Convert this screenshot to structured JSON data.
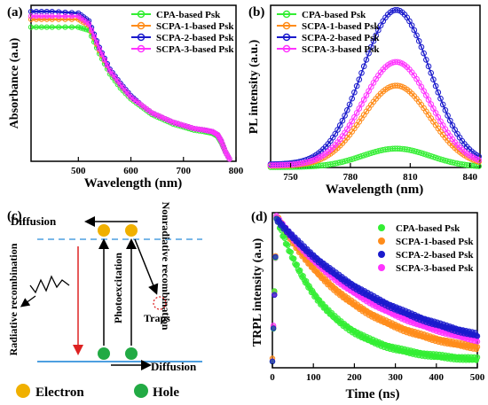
{
  "colors": {
    "cpa": "#33ee33",
    "scpa1": "#ff8c1a",
    "scpa2": "#1a1acc",
    "scpa3": "#ff33ff",
    "axis": "#000000",
    "dash": "#4d9fe0",
    "electron": "#f0b000",
    "hole": "#22aa44",
    "recomb_arrow": "#dd2222",
    "trap": "#dd2222"
  },
  "chart_data": [
    {
      "type": "line",
      "panel_label": "(a)",
      "xlabel": "Wavelength (nm)",
      "ylabel": "Absorbance (a.u)",
      "xlim": [
        410,
        800
      ],
      "ylim": [
        0,
        1.0
      ],
      "xticks": [
        500,
        600,
        700,
        800
      ],
      "legend_position": "top-right",
      "series": [
        {
          "name": "CPA-based Psk",
          "color_key": "cpa",
          "x": [
            410,
            450,
            500,
            520,
            540,
            560,
            580,
            600,
            620,
            640,
            660,
            680,
            700,
            720,
            740,
            755,
            765,
            772,
            780,
            790
          ],
          "y": [
            0.86,
            0.86,
            0.86,
            0.84,
            0.69,
            0.56,
            0.47,
            0.4,
            0.35,
            0.3,
            0.27,
            0.24,
            0.22,
            0.2,
            0.19,
            0.18,
            0.16,
            0.12,
            0.06,
            0.0
          ]
        },
        {
          "name": "SCPA-1-based Psk",
          "color_key": "scpa1",
          "x": [
            410,
            450,
            500,
            520,
            540,
            560,
            580,
            600,
            620,
            640,
            660,
            680,
            700,
            720,
            740,
            755,
            765,
            772,
            780,
            790
          ],
          "y": [
            0.91,
            0.91,
            0.91,
            0.87,
            0.71,
            0.58,
            0.49,
            0.41,
            0.36,
            0.31,
            0.28,
            0.25,
            0.23,
            0.21,
            0.2,
            0.19,
            0.17,
            0.13,
            0.06,
            0.0
          ]
        },
        {
          "name": "SCPA-2-based Psk",
          "color_key": "scpa2",
          "x": [
            410,
            450,
            500,
            520,
            540,
            560,
            580,
            600,
            620,
            640,
            660,
            680,
            700,
            720,
            740,
            755,
            765,
            772,
            780,
            790
          ],
          "y": [
            0.96,
            0.96,
            0.95,
            0.9,
            0.73,
            0.59,
            0.5,
            0.42,
            0.36,
            0.31,
            0.28,
            0.25,
            0.23,
            0.21,
            0.2,
            0.19,
            0.17,
            0.13,
            0.06,
            0.0
          ]
        },
        {
          "name": "SCPA-3-based Psk",
          "color_key": "scpa3",
          "x": [
            410,
            450,
            500,
            520,
            540,
            560,
            580,
            600,
            620,
            640,
            660,
            680,
            700,
            720,
            740,
            755,
            765,
            772,
            780,
            790
          ],
          "y": [
            0.93,
            0.93,
            0.93,
            0.88,
            0.72,
            0.58,
            0.49,
            0.41,
            0.36,
            0.31,
            0.28,
            0.25,
            0.23,
            0.21,
            0.2,
            0.19,
            0.17,
            0.13,
            0.06,
            0.0
          ]
        }
      ]
    },
    {
      "type": "line",
      "panel_label": "(b)",
      "xlabel": "Wavelength (nm)",
      "ylabel": "PL intensity (a.u.)",
      "xlim": [
        740,
        845
      ],
      "ylim": [
        0,
        1.05
      ],
      "xticks": [
        750,
        780,
        810,
        840
      ],
      "legend_position": "top-left",
      "series": [
        {
          "name": "CPA-based Psk",
          "color_key": "cpa",
          "peak": 0.12
        },
        {
          "name": "SCPA-1-based Psk",
          "color_key": "scpa1",
          "peak": 0.52
        },
        {
          "name": "SCPA-2-based Psk",
          "color_key": "scpa2",
          "peak": 1.0
        },
        {
          "name": "SCPA-3-based Psk",
          "color_key": "scpa3",
          "peak": 0.67
        }
      ],
      "peak_position_nm": 803
    },
    {
      "type": "diagram",
      "panel_label": "(c)",
      "labels": {
        "diffusion_top": "Diffusion",
        "diffusion_bottom": "Diffusion",
        "radiative": "Radiative recombination",
        "photoexcitation": "Photoexcitation",
        "nonradiative": "Nonradiative recombination",
        "traps": "Traps",
        "electron": "Electron",
        "hole": "Hole"
      }
    },
    {
      "type": "scatter",
      "panel_label": "(d)",
      "xlabel": "Time (ns)",
      "ylabel": "TRPL intensity (a.u)",
      "xlim": [
        0,
        500
      ],
      "ylim": [
        0,
        1.0
      ],
      "xticks": [
        0,
        100,
        200,
        300,
        400,
        500
      ],
      "legend_position": "top-right",
      "series": [
        {
          "name": "CPA-based Psk",
          "color_key": "cpa",
          "tau": 120,
          "floor": 0.04
        },
        {
          "name": "SCPA-1-based Psk",
          "color_key": "scpa1",
          "tau": 200,
          "floor": 0.05
        },
        {
          "name": "SCPA-2-based Psk",
          "color_key": "scpa2",
          "tau": 300,
          "floor": 0.03
        },
        {
          "name": "SCPA-3-based Psk",
          "color_key": "scpa3",
          "tau": 260,
          "floor": 0.04
        }
      ]
    }
  ]
}
